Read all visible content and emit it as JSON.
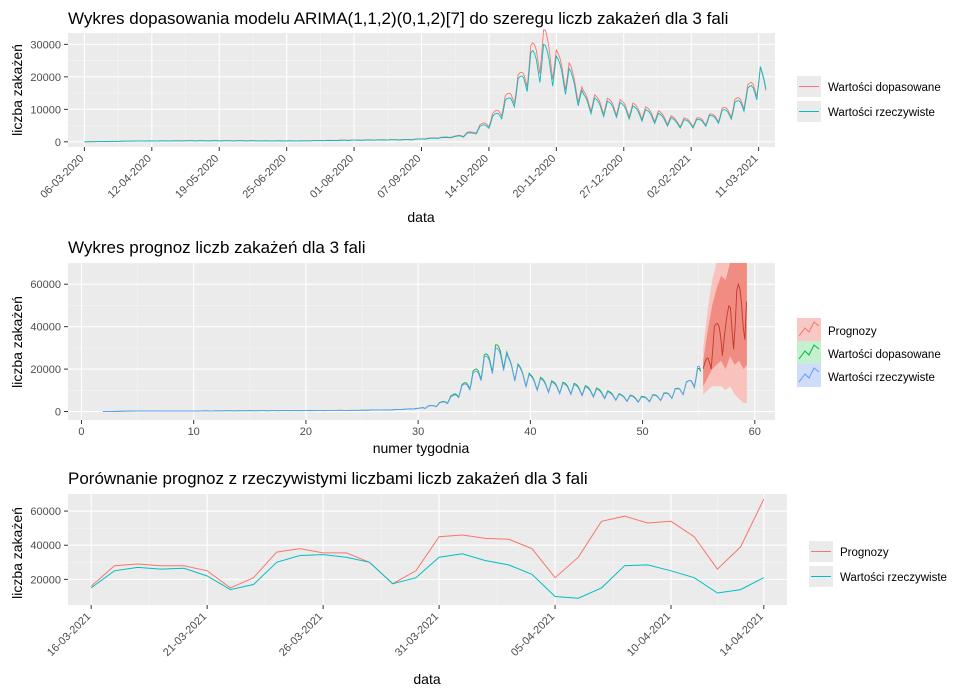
{
  "colors": {
    "panel": "#ebebeb",
    "grid_major": "#ffffff",
    "fitted": "#f8766d",
    "actual": "#00bfc4",
    "p2_forecast": "#f8766d",
    "p2_fitted": "#00ba38",
    "p2_actual": "#619cff"
  },
  "chart_data": [
    {
      "type": "line",
      "title": "Wykres dopasowania modelu ARIMA(1,1,2)(0,1,2)[7] do szeregu liczb zakażeń dla 3 fali",
      "xlabel": "data",
      "ylabel": "liczba zakażeń",
      "x_axis": "date",
      "xlim": [
        "2020-02-26",
        "2021-03-20"
      ],
      "ylim": [
        -1600,
        33500
      ],
      "y_ticks": [
        0,
        10000,
        20000,
        30000
      ],
      "y_tick_labels": [
        "0",
        "10000",
        "20000",
        "30000"
      ],
      "x_ticks": [
        "2020-03-06",
        "2020-04-12",
        "2020-05-19",
        "2020-06-25",
        "2020-08-01",
        "2020-09-07",
        "2020-10-14",
        "2020-11-20",
        "2020-12-27",
        "2021-02-02",
        "2021-03-11"
      ],
      "x_tick_labels": [
        "06-03-2020",
        "12-04-2020",
        "19-05-2020",
        "25-06-2020",
        "01-08-2020",
        "07-09-2020",
        "14-10-2020",
        "20-11-2020",
        "27-12-2020",
        "02-02-2021",
        "11-03-2021"
      ],
      "legend_position": "right",
      "series": [
        {
          "name": "Wartości dopasowane",
          "role": "fitted",
          "x_start": "2020-03-06",
          "x_end": "2021-03-15",
          "control_values": [
            [
              "2020-03-06",
              0
            ],
            [
              "2020-04-01",
              250
            ],
            [
              "2020-05-01",
              350
            ],
            [
              "2020-06-01",
              350
            ],
            [
              "2020-07-01",
              300
            ],
            [
              "2020-08-01",
              550
            ],
            [
              "2020-09-01",
              700
            ],
            [
              "2020-09-25",
              1600
            ],
            [
              "2020-10-05",
              3000
            ],
            [
              "2020-10-15",
              7000
            ],
            [
              "2020-10-25",
              14000
            ],
            [
              "2020-11-01",
              20000
            ],
            [
              "2020-11-07",
              27500
            ],
            [
              "2020-11-14",
              31000
            ],
            [
              "2020-11-20",
              25000
            ],
            [
              "2020-11-28",
              21000
            ],
            [
              "2020-12-05",
              14000
            ],
            [
              "2020-12-15",
              12000
            ],
            [
              "2020-12-25",
              11500
            ],
            [
              "2021-01-05",
              10000
            ],
            [
              "2021-01-15",
              8500
            ],
            [
              "2021-01-25",
              6500
            ],
            [
              "2021-02-05",
              6500
            ],
            [
              "2021-02-15",
              8000
            ],
            [
              "2021-02-25",
              11000
            ],
            [
              "2021-03-05",
              15500
            ],
            [
              "2021-03-10",
              19500
            ],
            [
              "2021-03-12",
              20500
            ],
            [
              "2021-03-15",
              16000
            ]
          ]
        },
        {
          "name": "Wartości rzeczywiste",
          "role": "actual",
          "x_start": "2020-03-06",
          "x_end": "2021-03-15",
          "control_values": [
            [
              "2020-03-06",
              0
            ],
            [
              "2020-04-01",
              200
            ],
            [
              "2020-05-01",
              300
            ],
            [
              "2020-06-01",
              300
            ],
            [
              "2020-07-01",
              250
            ],
            [
              "2020-08-01",
              500
            ],
            [
              "2020-09-01",
              650
            ],
            [
              "2020-09-25",
              1500
            ],
            [
              "2020-10-05",
              2800
            ],
            [
              "2020-10-15",
              6500
            ],
            [
              "2020-10-25",
              13000
            ],
            [
              "2020-11-01",
              19500
            ],
            [
              "2020-11-07",
              26000
            ],
            [
              "2020-11-14",
              27500
            ],
            [
              "2020-11-20",
              24000
            ],
            [
              "2020-11-28",
              20000
            ],
            [
              "2020-12-05",
              13500
            ],
            [
              "2020-12-15",
              11500
            ],
            [
              "2020-12-25",
              11000
            ],
            [
              "2021-01-05",
              9500
            ],
            [
              "2021-01-15",
              8000
            ],
            [
              "2021-01-25",
              6200
            ],
            [
              "2021-02-05",
              6200
            ],
            [
              "2021-02-15",
              7800
            ],
            [
              "2021-02-25",
              10500
            ],
            [
              "2021-03-05",
              15000
            ],
            [
              "2021-03-10",
              19000
            ],
            [
              "2021-03-12",
              21000
            ],
            [
              "2021-03-15",
              17000
            ]
          ]
        }
      ]
    },
    {
      "type": "line",
      "title": "Wykres prognoz liczb zakażeń dla 3 fali",
      "xlabel": "numer tygodnia",
      "ylabel": "liczba zakażeń",
      "xlim": [
        -1.2,
        61.8
      ],
      "ylim": [
        -4000,
        70000
      ],
      "x_ticks": [
        0,
        10,
        20,
        30,
        40,
        50,
        60
      ],
      "x_tick_labels": [
        "0",
        "10",
        "20",
        "30",
        "40",
        "50",
        "60"
      ],
      "y_ticks": [
        0,
        20000,
        40000,
        60000
      ],
      "y_tick_labels": [
        "0",
        "20000",
        "40000",
        "60000"
      ],
      "legend_position": "right",
      "series": [
        {
          "name": "Prognozy",
          "role": "forecast",
          "x": [
            55.4,
            55.8,
            56.2,
            56.6,
            57.0,
            57.4,
            57.8,
            58.2,
            58.6,
            59.0,
            59.3
          ],
          "values": [
            18000,
            26000,
            34000,
            38000,
            45000,
            36000,
            52000,
            46000,
            56000,
            50000,
            62000
          ],
          "interval80": [
            [
              12000,
              24000
            ],
            [
              16000,
              38000
            ],
            [
              20000,
              50000
            ],
            [
              22000,
              58000
            ],
            [
              24000,
              64000
            ],
            [
              20000,
              62000
            ],
            [
              26000,
              70000
            ],
            [
              22000,
              70000
            ],
            [
              24000,
              70000
            ],
            [
              20000,
              70000
            ],
            [
              22000,
              70000
            ]
          ],
          "interval95": [
            [
              8000,
              30000
            ],
            [
              10000,
              48000
            ],
            [
              12000,
              62000
            ],
            [
              12000,
              70000
            ],
            [
              12000,
              70000
            ],
            [
              10000,
              70000
            ],
            [
              12000,
              70000
            ],
            [
              8000,
              70000
            ],
            [
              6000,
              70000
            ],
            [
              4000,
              70000
            ],
            [
              4000,
              70000
            ]
          ]
        },
        {
          "name": "Wartości dopasowane",
          "role": "fitted",
          "control_values": [
            [
              1.9,
              0
            ],
            [
              5,
              250
            ],
            [
              10,
              300
            ],
            [
              15,
              400
            ],
            [
              20,
              450
            ],
            [
              25,
              600
            ],
            [
              28,
              900
            ],
            [
              30,
              1500
            ],
            [
              31,
              2500
            ],
            [
              32,
              4000
            ],
            [
              33,
              7000
            ],
            [
              34,
              12000
            ],
            [
              35,
              18000
            ],
            [
              36,
              25000
            ],
            [
              37,
              29000
            ],
            [
              37.6,
              30000
            ],
            [
              38,
              24000
            ],
            [
              39,
              20000
            ],
            [
              40,
              16000
            ],
            [
              42,
              13000
            ],
            [
              44,
              12000
            ],
            [
              46,
              10000
            ],
            [
              48,
              7500
            ],
            [
              50,
              6500
            ],
            [
              52,
              8000
            ],
            [
              53,
              10000
            ],
            [
              54,
              13000
            ],
            [
              55,
              19000
            ],
            [
              55.3,
              17500
            ]
          ]
        },
        {
          "name": "Wartości rzeczywiste",
          "role": "actual",
          "control_values": [
            [
              1.9,
              0
            ],
            [
              5,
              200
            ],
            [
              10,
              300
            ],
            [
              15,
              350
            ],
            [
              20,
              400
            ],
            [
              25,
              550
            ],
            [
              28,
              850
            ],
            [
              30,
              1400
            ],
            [
              31,
              2400
            ],
            [
              32,
              3800
            ],
            [
              33,
              6500
            ],
            [
              34,
              11500
            ],
            [
              35,
              17000
            ],
            [
              36,
              24000
            ],
            [
              37,
              27500
            ],
            [
              37.6,
              28500
            ],
            [
              38,
              23500
            ],
            [
              39,
              19500
            ],
            [
              40,
              15500
            ],
            [
              42,
              12500
            ],
            [
              44,
              11500
            ],
            [
              46,
              9500
            ],
            [
              48,
              7200
            ],
            [
              50,
              6200
            ],
            [
              52,
              7800
            ],
            [
              53,
              9800
            ],
            [
              54,
              12800
            ],
            [
              55,
              20000
            ],
            [
              55.3,
              18000
            ]
          ]
        }
      ]
    },
    {
      "type": "line",
      "title": "Porównanie prognoz z rzeczywistymi liczbami liczb zakażeń dla 3 fali",
      "xlabel": "data",
      "ylabel": "liczba zakażeń",
      "x_axis": "date",
      "xlim": [
        "2021-03-15",
        "2021-04-15"
      ],
      "ylim": [
        5000,
        70000
      ],
      "y_ticks": [
        20000,
        40000,
        60000
      ],
      "y_tick_labels": [
        "20000",
        "40000",
        "60000"
      ],
      "x_ticks": [
        "2021-03-16",
        "2021-03-21",
        "2021-03-26",
        "2021-03-31",
        "2021-04-05",
        "2021-04-10",
        "2021-04-14"
      ],
      "x_tick_labels": [
        "16-03-2021",
        "21-03-2021",
        "26-03-2021",
        "31-03-2021",
        "05-04-2021",
        "10-04-2021",
        "14-04-2021"
      ],
      "legend_position": "right",
      "x": [
        "2021-03-16",
        "2021-03-17",
        "2021-03-18",
        "2021-03-19",
        "2021-03-20",
        "2021-03-21",
        "2021-03-22",
        "2021-03-23",
        "2021-03-24",
        "2021-03-25",
        "2021-03-26",
        "2021-03-27",
        "2021-03-28",
        "2021-03-29",
        "2021-03-30",
        "2021-03-31",
        "2021-04-01",
        "2021-04-02",
        "2021-04-03",
        "2021-04-04",
        "2021-04-05",
        "2021-04-06",
        "2021-04-07",
        "2021-04-08",
        "2021-04-09",
        "2021-04-10",
        "2021-04-11",
        "2021-04-12",
        "2021-04-13",
        "2021-04-14"
      ],
      "series": [
        {
          "name": "Prognozy",
          "role": "forecast",
          "values": [
            16000,
            28000,
            29000,
            28000,
            28000,
            25000,
            15000,
            21000,
            36000,
            38000,
            35500,
            35500,
            30000,
            17500,
            25000,
            45000,
            46000,
            44000,
            43500,
            38000,
            21000,
            33000,
            54000,
            57000,
            53000,
            54000,
            45000,
            26000,
            39000,
            67000
          ]
        },
        {
          "name": "Wartości rzeczywiste",
          "role": "actual",
          "values": [
            15000,
            25000,
            27000,
            26000,
            26500,
            22000,
            14000,
            17000,
            30000,
            34000,
            34500,
            33000,
            30000,
            17500,
            21000,
            33000,
            35000,
            31000,
            28500,
            23000,
            10000,
            9000,
            15000,
            28000,
            28500,
            25000,
            21000,
            12000,
            14000,
            21000
          ]
        }
      ]
    }
  ]
}
